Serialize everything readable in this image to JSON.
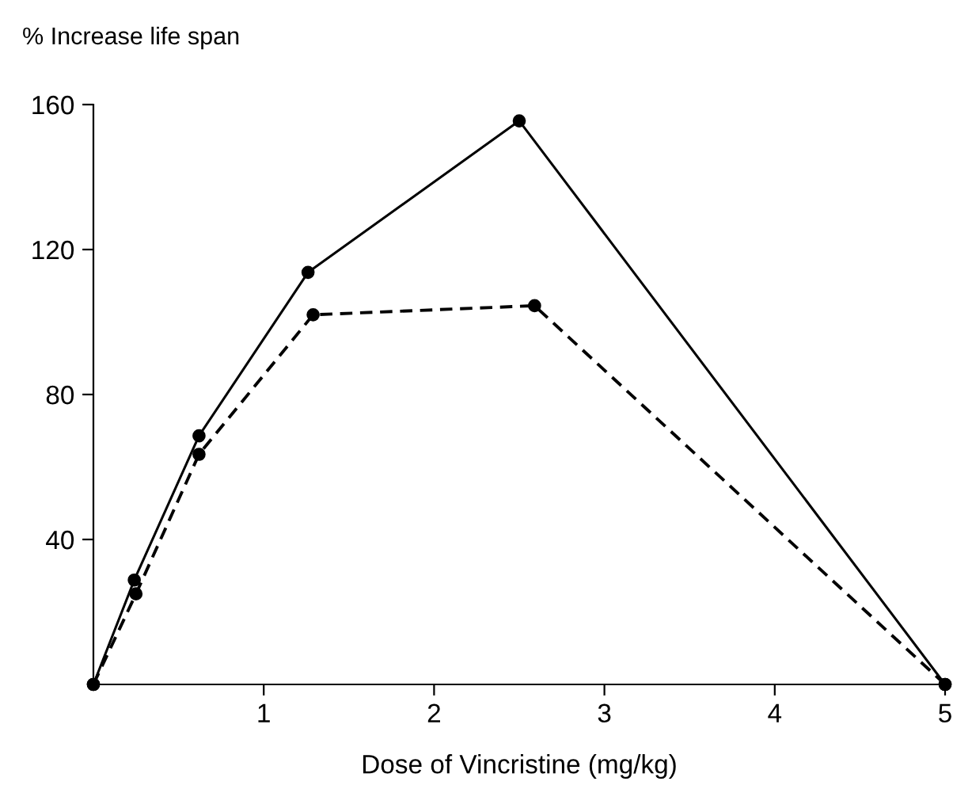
{
  "chart_data": {
    "type": "line",
    "ylabel": "% Increase life span",
    "xlabel": "Dose of Vincristine (mg/kg)",
    "xlim": [
      0,
      5
    ],
    "ylim": [
      0,
      160
    ],
    "xticks": [
      1,
      2,
      3,
      4,
      5
    ],
    "yticks": [
      40,
      80,
      120,
      160
    ],
    "grid": false,
    "legend": false,
    "marker": "circle",
    "series": [
      {
        "color": "#000000",
        "line_style": "solid",
        "x": [
          0,
          0.24,
          0.62,
          1.26,
          2.5,
          5
        ],
        "values": [
          0,
          28.8,
          68.6,
          113.7,
          155.5,
          0
        ]
      },
      {
        "color": "#000000",
        "line_style": "dashed",
        "x": [
          0,
          0.25,
          0.62,
          1.29,
          2.59,
          5
        ],
        "values": [
          0,
          25,
          63.5,
          102,
          104.5,
          0
        ]
      }
    ]
  }
}
